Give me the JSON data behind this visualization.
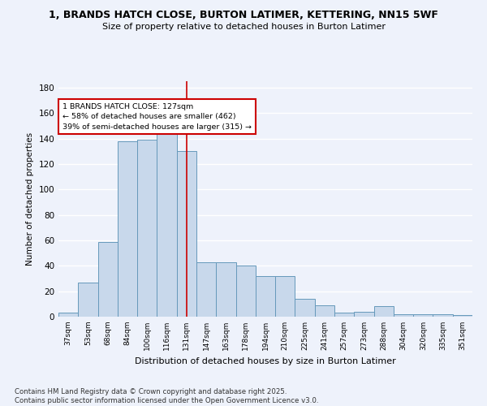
{
  "title_line1": "1, BRANDS HATCH CLOSE, BURTON LATIMER, KETTERING, NN15 5WF",
  "title_line2": "Size of property relative to detached houses in Burton Latimer",
  "xlabel": "Distribution of detached houses by size in Burton Latimer",
  "ylabel": "Number of detached properties",
  "categories": [
    "37sqm",
    "53sqm",
    "68sqm",
    "84sqm",
    "100sqm",
    "116sqm",
    "131sqm",
    "147sqm",
    "163sqm",
    "178sqm",
    "194sqm",
    "210sqm",
    "225sqm",
    "241sqm",
    "257sqm",
    "273sqm",
    "288sqm",
    "304sqm",
    "320sqm",
    "335sqm",
    "351sqm"
  ],
  "values": [
    3,
    27,
    59,
    138,
    139,
    148,
    130,
    43,
    43,
    40,
    32,
    32,
    14,
    9,
    3,
    4,
    8,
    2,
    2,
    2,
    1
  ],
  "bar_color": "#c8d8eb",
  "bar_edge_color": "#6699bb",
  "property_line_index": 6,
  "property_label": "1 BRANDS HATCH CLOSE: 127sqm",
  "smaller_text": "← 58% of detached houses are smaller (462)",
  "larger_text": "39% of semi-detached houses are larger (315) →",
  "annotation_box_color": "#ffffff",
  "annotation_box_edge_color": "#cc0000",
  "vline_color": "#cc0000",
  "ylim": [
    0,
    185
  ],
  "yticks": [
    0,
    20,
    40,
    60,
    80,
    100,
    120,
    140,
    160,
    180
  ],
  "background_color": "#eef2fb",
  "grid_color": "#ffffff",
  "footnote1": "Contains HM Land Registry data © Crown copyright and database right 2025.",
  "footnote2": "Contains public sector information licensed under the Open Government Licence v3.0."
}
